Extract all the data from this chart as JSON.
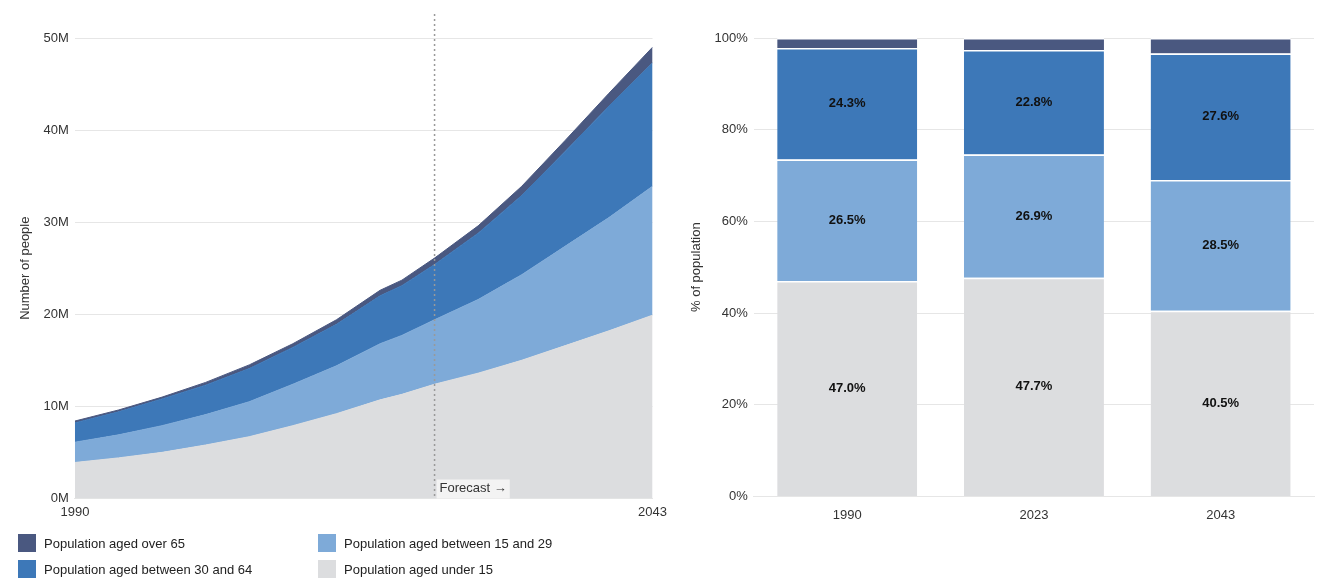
{
  "chart_data": [
    {
      "type": "area",
      "ylabel": "Number of people",
      "xlim": [
        1990,
        2043
      ],
      "xticks": [
        1990,
        2043
      ],
      "ylim": [
        0,
        50
      ],
      "yticks": [
        {
          "value": 0,
          "label": "0M"
        },
        {
          "value": 10,
          "label": "10M"
        },
        {
          "value": 20,
          "label": "20M"
        },
        {
          "value": 30,
          "label": "30M"
        },
        {
          "value": 40,
          "label": "40M"
        },
        {
          "value": 50,
          "label": "50M"
        }
      ],
      "grid": "y",
      "stacked": true,
      "marker": "none",
      "legend": "bottom",
      "x": [
        1990,
        1994,
        1998,
        2002,
        2006,
        2010,
        2014,
        2018,
        2020,
        2023,
        2027,
        2031,
        2035,
        2039,
        2043
      ],
      "series": [
        {
          "name": "Population aged under 15",
          "color": "#dcdddf",
          "values": [
            3.9,
            4.4,
            5.0,
            5.8,
            6.7,
            7.9,
            9.2,
            10.7,
            11.3,
            12.4,
            13.6,
            15.0,
            16.6,
            18.2,
            19.9
          ]
        },
        {
          "name": "Population aged between 15 and 29",
          "color": "#7eaad8",
          "values": [
            2.2,
            2.5,
            2.9,
            3.3,
            3.8,
            4.5,
            5.2,
            6.1,
            6.4,
            7.0,
            8.0,
            9.3,
            10.8,
            12.3,
            14.0
          ]
        },
        {
          "name": "Population aged between 30 and 64",
          "color": "#3d78b8",
          "values": [
            2.1,
            2.5,
            2.9,
            3.2,
            3.6,
            4.0,
            4.5,
            5.2,
            5.4,
            6.0,
            7.2,
            8.6,
            10.3,
            12.1,
            13.4
          ]
        },
        {
          "name": "Population aged over 65",
          "color": "#4a5880",
          "values": [
            0.2,
            0.2,
            0.2,
            0.3,
            0.4,
            0.4,
            0.5,
            0.6,
            0.6,
            0.7,
            0.8,
            1.0,
            1.2,
            1.4,
            1.7
          ]
        }
      ],
      "ref_lines": [
        {
          "axis": "x",
          "value": 2023,
          "label": "Forecast →",
          "color": "#999999",
          "line_style": "dotted"
        }
      ]
    },
    {
      "type": "bar",
      "ylabel": "% of population",
      "categories": [
        "1990",
        "2023",
        "2043"
      ],
      "ylim": [
        0,
        100
      ],
      "yticks": [
        {
          "value": 0,
          "label": "0%"
        },
        {
          "value": 20,
          "label": "20%"
        },
        {
          "value": 40,
          "label": "40%"
        },
        {
          "value": 60,
          "label": "60%"
        },
        {
          "value": 80,
          "label": "80%"
        },
        {
          "value": 100,
          "label": "100%"
        }
      ],
      "grid": "y",
      "stacked": true,
      "series": [
        {
          "color": "#dcdddf",
          "values": [
            47.0,
            47.7,
            40.5
          ],
          "value_labels": [
            "47.0%",
            "47.7%",
            "40.5%"
          ]
        },
        {
          "color": "#7eaad8",
          "values": [
            26.5,
            26.9,
            28.5
          ],
          "value_labels": [
            "26.5%",
            "26.9%",
            "28.5%"
          ]
        },
        {
          "color": "#3d78b8",
          "values": [
            24.3,
            22.8,
            27.6
          ],
          "value_labels": [
            "24.3%",
            "22.8%",
            "27.6%"
          ]
        },
        {
          "color": "#4a5880",
          "values": [
            2.2,
            2.6,
            3.4
          ],
          "value_labels": [
            null,
            null,
            null
          ]
        }
      ]
    }
  ]
}
